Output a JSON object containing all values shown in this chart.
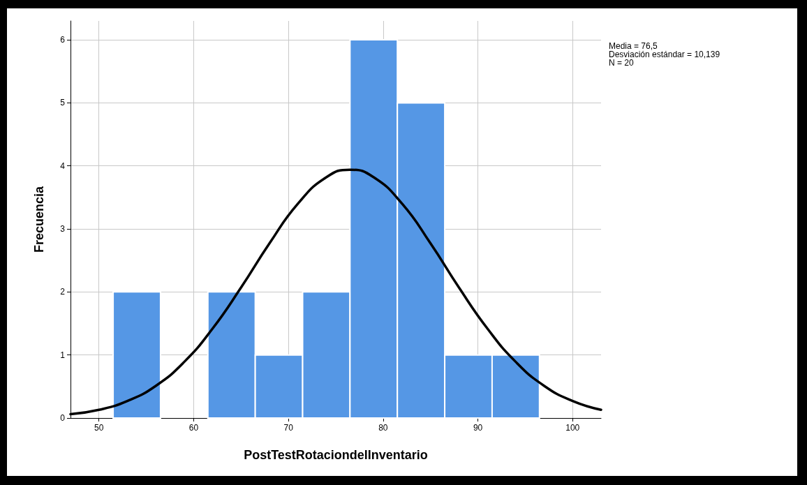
{
  "chart_data": {
    "type": "histogram",
    "xlabel": "PostTestRotaciondelInventario",
    "ylabel": "Frecuencia",
    "bins": [
      51.5,
      56.5,
      61.5,
      66.5,
      71.5,
      76.5,
      81.5,
      86.5,
      91.5,
      96.5
    ],
    "values": [
      2,
      0,
      2,
      1,
      2,
      6,
      5,
      1,
      1
    ],
    "color": "#5597e5",
    "series": [
      {
        "type": "line",
        "color": "#000000",
        "x": [
          47,
          50,
          53,
          56,
          59,
          62,
          65,
          68,
          71,
          74,
          76.5,
          79,
          82,
          85,
          88,
          91,
          94,
          97,
          100,
          103
        ],
        "values": [
          0.06,
          0.13,
          0.27,
          0.51,
          0.89,
          1.42,
          2.07,
          2.77,
          3.4,
          3.82,
          3.94,
          3.82,
          3.4,
          2.77,
          2.07,
          1.42,
          0.89,
          0.51,
          0.27,
          0.13
        ]
      }
    ],
    "xlim": [
      47,
      103
    ],
    "xticks": [
      50,
      60,
      70,
      80,
      90,
      100
    ],
    "ylim": [
      0,
      6.3
    ],
    "yticks": [
      0,
      1,
      2,
      3,
      4,
      5,
      6
    ],
    "grid": true,
    "marker": "none",
    "line_style": "solid",
    "annotations": [
      "Media = 76,5",
      "Desviación estándar = 10,139",
      "N = 20"
    ]
  }
}
